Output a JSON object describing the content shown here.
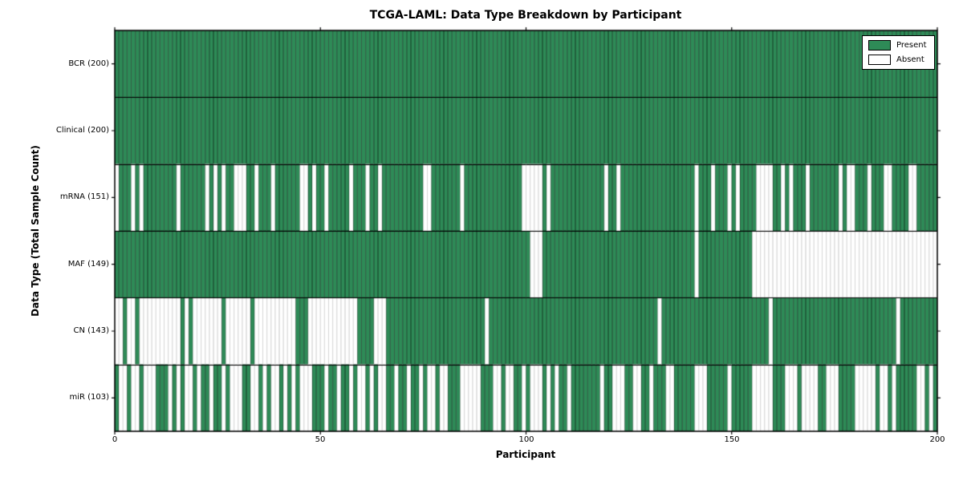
{
  "title": "TCGA-LAML: Data Type Breakdown by Participant",
  "x_axis": {
    "label": "Participant",
    "ticks": [
      "0",
      "50",
      "100",
      "150",
      "200"
    ],
    "range": [
      0,
      200
    ]
  },
  "y_axis": {
    "label": "Data Type (Total Sample Count)"
  },
  "legend": {
    "present_label": "Present",
    "absent_label": "Absent"
  },
  "colors": {
    "present": "#2e8b57",
    "absent": "#ffffff",
    "present_edge": "rgba(0,0,0,0.60)",
    "absent_edge": "rgba(0,0,0,0.22)",
    "frame": "#000000"
  },
  "chart_data": {
    "type": "heatmap",
    "title": "TCGA-LAML: Data Type Breakdown by Participant",
    "xlabel": "Participant",
    "ylabel": "Data Type (Total Sample Count)",
    "x_ticks": [
      0,
      50,
      100,
      150,
      200
    ],
    "n_participants": 200,
    "legend_entries": [
      "Present",
      "Absent"
    ],
    "legend_position": "upper right",
    "rows": [
      {
        "label": "BCR (200)",
        "name": "BCR",
        "present_count": 200,
        "presence": "11111111111111111111111111111111111111111111111111111111111111111111111111111111111111111111111111111111111111111111111111111111111111111111111111111111111111111111111111111111111111111111111111111111"
      },
      {
        "label": "Clinical (200)",
        "name": "Clinical",
        "present_count": 200,
        "presence": "11111111111111111111111111111111111111111111111111111111111111111111111111111111111111111111111111111111111111111111111111111111111111111111111111111111111111111111111111111111111111111111111111111111"
      },
      {
        "label": "mRNA (151)",
        "name": "mRNA",
        "present_count": 151,
        "presence": "01110101111111101111110101011000110111011111100101101111101110110111111111100111111101111111111111100000101111111111111011011111111111111111101110111010111100001101011101111111010011101110011110011111"
      },
      {
        "label": "MAF (149)",
        "name": "MAF",
        "present_count": 149,
        "presence": "11111111111111111111111111111111111111111111111111111111111111111111111111111111111111111111111111111000111111111111111111111111111111111111101111111111111000000000000000000000000000000000000000000000"
      },
      {
        "label": "CN (143)",
        "name": "CN",
        "present_count": 143,
        "presence": "00100100000000001010000000100000010000000000111000000000000111100011111111111111111111111101111111111111111111111111111111111111111101111111111111111111111111101111111111111111111111111111110111111111"
      },
      {
        "label": "miR (103)",
        "name": "miR",
        "present_count": 103,
        "presence": "10010010001110101001011011010001100101001010100011101101101001010011011011010010011100000111001001101000101011011111110110001100110111001111100011111011111000001110001000011000111100000100101111100101"
      }
    ]
  }
}
